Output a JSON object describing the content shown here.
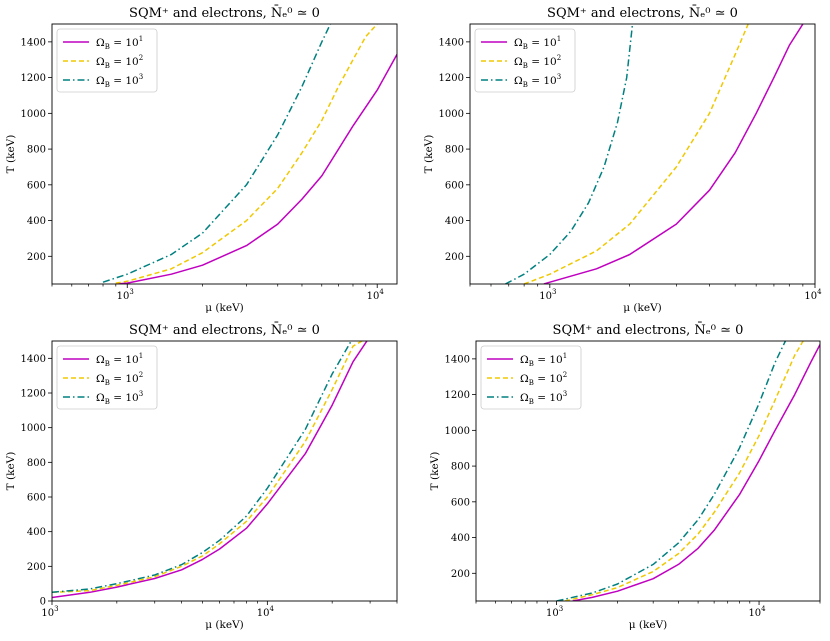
{
  "chart_data": [
    {
      "type": "line",
      "title": "SQM⁺ and electrons, N̄ₑ⁰ ≃ 0",
      "xlabel": "μ (keV)",
      "ylabel": "T (keV)",
      "xscale": "log",
      "xlim": [
        500,
        12000
      ],
      "ylim": [
        45,
        1500
      ],
      "xticks": [
        {
          "value": 1000,
          "base": "10",
          "exp": "3"
        },
        {
          "value": 10000,
          "base": "10",
          "exp": "4"
        }
      ],
      "yticks": [
        200,
        400,
        600,
        800,
        1000,
        1200,
        1400
      ],
      "legend_position": "top-left",
      "series": [
        {
          "name": "Ω_B = 10¹",
          "label_base": "Ω",
          "label_sub": "B",
          "label_rhs": " = 10",
          "label_exp": "1",
          "color": "#c000c0",
          "dash": "solid",
          "x": [
            900,
            1000,
            1500,
            2000,
            3000,
            4000,
            5000,
            6000,
            8000,
            10000,
            12000
          ],
          "y": [
            45,
            50,
            100,
            150,
            260,
            380,
            520,
            650,
            930,
            1130,
            1330
          ]
        },
        {
          "name": "Ω_B = 10²",
          "label_base": "Ω",
          "label_sub": "B",
          "label_rhs": " = 10",
          "label_exp": "2",
          "color": "#f0c800",
          "dash": "dashed",
          "x": [
            900,
            1000,
            1500,
            2000,
            3000,
            4000,
            5000,
            6000,
            7000,
            8000,
            9000,
            10000
          ],
          "y": [
            50,
            60,
            130,
            220,
            400,
            580,
            780,
            960,
            1150,
            1300,
            1430,
            1500
          ]
        },
        {
          "name": "Ω_B = 10³",
          "label_base": "Ω",
          "label_sub": "B",
          "label_rhs": " = 10",
          "label_exp": "3",
          "color": "#008080",
          "dash": "dashdot",
          "x": [
            800,
            1000,
            1500,
            2000,
            3000,
            4000,
            5000,
            6000,
            6500
          ],
          "y": [
            55,
            100,
            210,
            330,
            600,
            880,
            1150,
            1400,
            1500
          ]
        }
      ]
    },
    {
      "type": "line",
      "title": "SQM⁺ and electrons, N̄ₑ⁰ ≃ 0",
      "xlabel": "μ (keV)",
      "ylabel": "T (keV)",
      "xscale": "log",
      "xlim": [
        500,
        10000
      ],
      "ylim": [
        45,
        1500
      ],
      "xticks": [
        {
          "value": 1000,
          "base": "10",
          "exp": "3"
        },
        {
          "value": 10000,
          "base": "10",
          "exp": "4"
        }
      ],
      "yticks": [
        200,
        400,
        600,
        800,
        1000,
        1200,
        1400
      ],
      "legend_position": "top-left",
      "series": [
        {
          "name": "Ω_B = 10¹",
          "label_base": "Ω",
          "label_sub": "B",
          "label_rhs": " = 10",
          "label_exp": "1",
          "color": "#c000c0",
          "dash": "solid",
          "x": [
            950,
            1000,
            1500,
            2000,
            3000,
            4000,
            5000,
            6000,
            7000,
            8000,
            9000
          ],
          "y": [
            45,
            55,
            130,
            210,
            380,
            570,
            780,
            1000,
            1200,
            1380,
            1500
          ]
        },
        {
          "name": "Ω_B = 10²",
          "label_base": "Ω",
          "label_sub": "B",
          "label_rhs": " = 10",
          "label_exp": "2",
          "color": "#f0c800",
          "dash": "dashed",
          "x": [
            800,
            1000,
            1500,
            2000,
            3000,
            4000,
            5000,
            5600
          ],
          "y": [
            45,
            100,
            230,
            380,
            700,
            1000,
            1330,
            1500
          ]
        },
        {
          "name": "Ω_B = 10³",
          "label_base": "Ω",
          "label_sub": "B",
          "label_rhs": " = 10",
          "label_exp": "3",
          "color": "#008080",
          "dash": "dashdot",
          "x": [
            680,
            800,
            1000,
            1200,
            1400,
            1600,
            1800,
            1950,
            2050
          ],
          "y": [
            45,
            100,
            210,
            340,
            500,
            700,
            950,
            1200,
            1500
          ]
        }
      ]
    },
    {
      "type": "line",
      "title": "SQM⁺ and electrons, N̄ₑ⁰ ≃ 0",
      "xlabel": "μ (keV)",
      "ylabel": "T (keV)",
      "xscale": "log",
      "xlim": [
        1000,
        40000
      ],
      "ylim": [
        0,
        1500
      ],
      "xticks": [
        {
          "value": 1000,
          "base": "10",
          "exp": "3"
        },
        {
          "value": 10000,
          "base": "10",
          "exp": "4"
        }
      ],
      "yticks": [
        0,
        200,
        400,
        600,
        800,
        1000,
        1200,
        1400
      ],
      "legend_position": "top-left",
      "series": [
        {
          "name": "Ω_B = 10¹",
          "label_base": "Ω",
          "label_sub": "B",
          "label_rhs": " = 10",
          "label_exp": "1",
          "color": "#c000c0",
          "dash": "solid",
          "x": [
            1000,
            1500,
            2000,
            3000,
            4000,
            5000,
            6000,
            8000,
            10000,
            15000,
            20000,
            25000,
            29000
          ],
          "y": [
            20,
            50,
            80,
            130,
            180,
            240,
            300,
            420,
            560,
            850,
            1130,
            1380,
            1500
          ]
        },
        {
          "name": "Ω_B = 10²",
          "label_base": "Ω",
          "label_sub": "B",
          "label_rhs": " = 10",
          "label_exp": "2",
          "color": "#f0c800",
          "dash": "dashed",
          "x": [
            1000,
            1500,
            2000,
            3000,
            4000,
            5000,
            6000,
            8000,
            10000,
            15000,
            20000,
            25000,
            27500
          ],
          "y": [
            50,
            60,
            90,
            140,
            200,
            260,
            330,
            460,
            600,
            920,
            1220,
            1470,
            1500
          ]
        },
        {
          "name": "Ω_B = 10³",
          "label_base": "Ω",
          "label_sub": "B",
          "label_rhs": " = 10",
          "label_exp": "3",
          "color": "#008080",
          "dash": "dashdot",
          "x": [
            1000,
            1500,
            2000,
            3000,
            4000,
            5000,
            6000,
            8000,
            10000,
            15000,
            20000,
            24500
          ],
          "y": [
            50,
            70,
            100,
            150,
            210,
            280,
            350,
            490,
            650,
            990,
            1310,
            1500
          ]
        }
      ]
    },
    {
      "type": "line",
      "title": "SQM⁺ and electrons, N̄ₑ⁰ ≃ 0",
      "xlabel": "μ (keV)",
      "ylabel": "T (keV)",
      "xscale": "log",
      "xlim": [
        400,
        20000
      ],
      "ylim": [
        45,
        1500
      ],
      "xticks": [
        {
          "value": 1000,
          "base": "10",
          "exp": "3"
        },
        {
          "value": 10000,
          "base": "10",
          "exp": "4"
        }
      ],
      "yticks": [
        200,
        400,
        600,
        800,
        1000,
        1200,
        1400
      ],
      "legend_position": "top-left",
      "series": [
        {
          "name": "Ω_B = 10¹",
          "label_base": "Ω",
          "label_sub": "B",
          "label_rhs": " = 10",
          "label_exp": "1",
          "color": "#c000c0",
          "dash": "solid",
          "x": [
            1200,
            1500,
            2000,
            3000,
            4000,
            5000,
            6000,
            8000,
            10000,
            12000,
            15000,
            18000,
            20000
          ],
          "y": [
            45,
            65,
            100,
            170,
            250,
            340,
            440,
            640,
            830,
            1000,
            1200,
            1380,
            1480
          ]
        },
        {
          "name": "Ω_B = 10²",
          "label_base": "Ω",
          "label_sub": "B",
          "label_rhs": " = 10",
          "label_exp": "2",
          "color": "#f0c800",
          "dash": "dashed",
          "x": [
            1100,
            1500,
            2000,
            3000,
            4000,
            5000,
            6000,
            8000,
            10000,
            12000,
            15000,
            16500
          ],
          "y": [
            45,
            80,
            120,
            210,
            310,
            420,
            540,
            760,
            970,
            1170,
            1420,
            1500
          ]
        },
        {
          "name": "Ω_B = 10³",
          "label_base": "Ω",
          "label_sub": "B",
          "label_rhs": " = 10",
          "label_exp": "3",
          "color": "#008080",
          "dash": "dashdot",
          "x": [
            1000,
            1500,
            2000,
            3000,
            4000,
            5000,
            6000,
            8000,
            10000,
            12000,
            13500
          ],
          "y": [
            45,
            90,
            140,
            250,
            370,
            500,
            640,
            900,
            1150,
            1380,
            1500
          ]
        }
      ]
    }
  ]
}
